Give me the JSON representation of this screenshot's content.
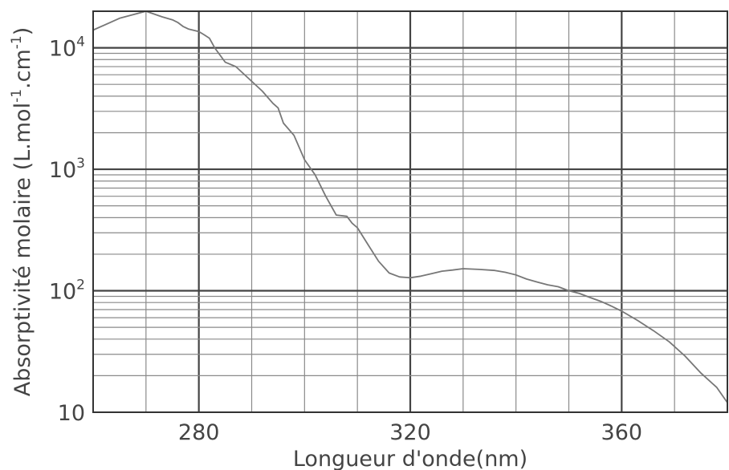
{
  "chart_data": {
    "type": "line",
    "title": "",
    "xlabel": "Longueur d'onde(nm)",
    "ylabel": "Absorptivité molaire (L.mol-1.cm-1)",
    "ylabel_parts": {
      "prefix": "Absorptivité molaire (L.mol",
      "sup1": "-1",
      "middle": ".cm",
      "sup2": "-1",
      "suffix": ")"
    },
    "xlim": [
      260,
      380
    ],
    "ylim": [
      10,
      20000
    ],
    "yscale": "log",
    "grid": true,
    "x_ticks": [
      {
        "value": 280,
        "label": "280"
      },
      {
        "value": 320,
        "label": "320"
      },
      {
        "value": 360,
        "label": "360"
      }
    ],
    "y_ticks": [
      {
        "value": 10,
        "base": "10",
        "exp": ""
      },
      {
        "value": 100,
        "base": "10",
        "exp": "2"
      },
      {
        "value": 1000,
        "base": "10",
        "exp": "3"
      },
      {
        "value": 10000,
        "base": "10",
        "exp": "4"
      }
    ],
    "series": [
      {
        "color": "#777777",
        "x": [
          260,
          265,
          270,
          273,
          275,
          276,
          277,
          278,
          280,
          281,
          282,
          283,
          285,
          287,
          290,
          292,
          294,
          295,
          296,
          298,
          300,
          302,
          304,
          306,
          308,
          309,
          310,
          312,
          314,
          316,
          318,
          320,
          322,
          324,
          326,
          328,
          330,
          333,
          336,
          338,
          340,
          342,
          344,
          346,
          348,
          350,
          352,
          354,
          356,
          358,
          360,
          363,
          366,
          369,
          372,
          375,
          378,
          380
        ],
        "y": [
          14000,
          17500,
          20000,
          18000,
          17000,
          16200,
          15000,
          14300,
          13600,
          12800,
          12000,
          10000,
          7600,
          7000,
          5300,
          4400,
          3500,
          3200,
          2400,
          1900,
          1200,
          900,
          600,
          420,
          410,
          360,
          330,
          240,
          175,
          140,
          130,
          128,
          132,
          138,
          145,
          148,
          152,
          150,
          147,
          142,
          135,
          125,
          118,
          112,
          108,
          100,
          95,
          88,
          82,
          75,
          68,
          57,
          47,
          38,
          29,
          21,
          16,
          12
        ]
      }
    ]
  }
}
